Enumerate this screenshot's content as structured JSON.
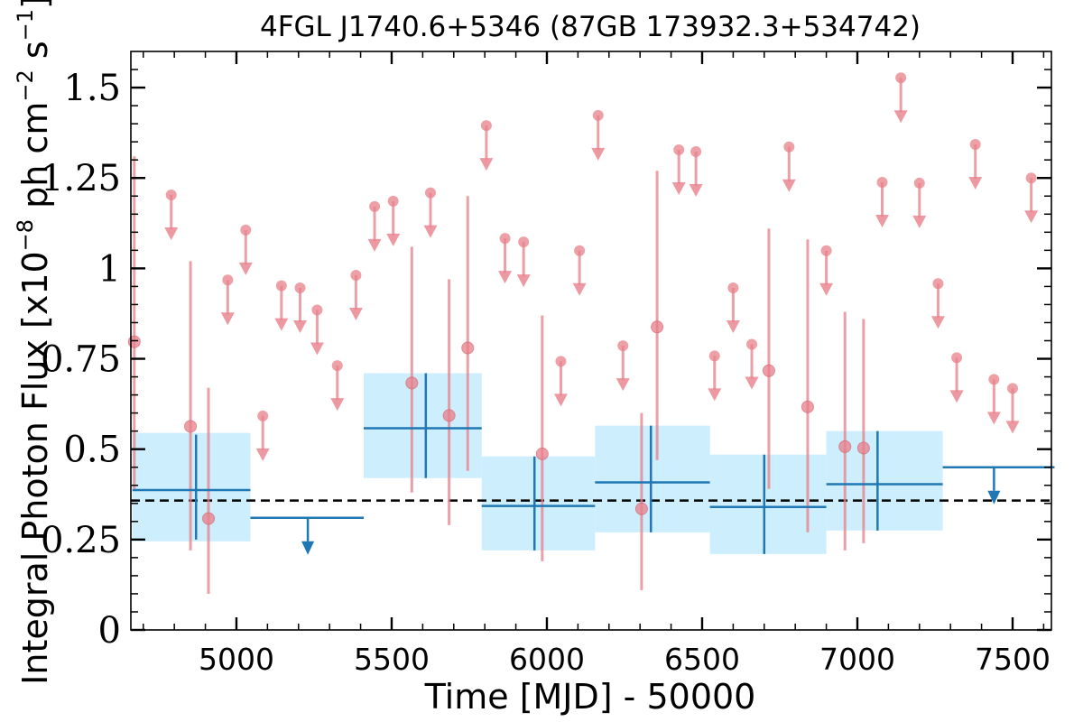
{
  "chart_data": {
    "type": "scatter",
    "title": "4FGL J1740.6+5346 (87GB 173932.3+534742)",
    "xlabel": "Time [MJD] - 50000",
    "ylabel_main": "Integral Photon Flux [x10",
    "ylabel_exp": "−8",
    "ylabel_mid": " ph cm",
    "ylabel_exp2": "−2",
    "ylabel_end": " s",
    "ylabel_exp3": "−1",
    "ylabel_close": "]",
    "xlim": [
      4660,
      7625
    ],
    "ylim": [
      0,
      1.6
    ],
    "xticks": [
      5000,
      5500,
      6000,
      6500,
      7000,
      7500
    ],
    "xtick_labels": [
      "5000",
      "5500",
      "6000",
      "6500",
      "7000",
      "7500"
    ],
    "yticks": [
      0,
      0.25,
      0.5,
      0.75,
      1,
      1.25,
      1.5
    ],
    "ytick_labels": [
      "0",
      "0.25",
      "0.5",
      "0.75",
      "1",
      "1.25",
      "1.5"
    ],
    "average_flux": 0.358,
    "colors": {
      "fine": "#e8808a",
      "coarse": "#1f77b4",
      "band": "#cdeefc",
      "average": "#000000"
    },
    "fine_detections": [
      {
        "x": 4671,
        "y": 0.797,
        "lo": 0.39,
        "hi": 1.31
      },
      {
        "x": 4852,
        "y": 0.563,
        "lo": 0.22,
        "hi": 1.02
      },
      {
        "x": 4910,
        "y": 0.308,
        "lo": 0.1,
        "hi": 0.67
      },
      {
        "x": 5565,
        "y": 0.683,
        "lo": 0.38,
        "hi": 1.06
      },
      {
        "x": 5685,
        "y": 0.593,
        "lo": 0.29,
        "hi": 0.97
      },
      {
        "x": 5745,
        "y": 0.78,
        "lo": 0.44,
        "hi": 1.2
      },
      {
        "x": 5985,
        "y": 0.487,
        "lo": 0.19,
        "hi": 0.87
      },
      {
        "x": 6305,
        "y": 0.335,
        "lo": 0.11,
        "hi": 0.6
      },
      {
        "x": 6355,
        "y": 0.838,
        "lo": 0.47,
        "hi": 1.27
      },
      {
        "x": 6715,
        "y": 0.717,
        "lo": 0.39,
        "hi": 1.11
      },
      {
        "x": 6840,
        "y": 0.617,
        "lo": 0.27,
        "hi": 1.08
      },
      {
        "x": 6960,
        "y": 0.507,
        "lo": 0.22,
        "hi": 0.88
      },
      {
        "x": 7020,
        "y": 0.503,
        "lo": 0.24,
        "hi": 0.86
      }
    ],
    "fine_upper_limits": [
      {
        "x": 4790,
        "y": 1.203
      },
      {
        "x": 4972,
        "y": 0.968
      },
      {
        "x": 5030,
        "y": 1.106
      },
      {
        "x": 5085,
        "y": 0.592
      },
      {
        "x": 5145,
        "y": 0.952
      },
      {
        "x": 5205,
        "y": 0.946
      },
      {
        "x": 5260,
        "y": 0.885
      },
      {
        "x": 5325,
        "y": 0.731
      },
      {
        "x": 5385,
        "y": 0.981
      },
      {
        "x": 5445,
        "y": 1.171
      },
      {
        "x": 5505,
        "y": 1.186
      },
      {
        "x": 5625,
        "y": 1.209
      },
      {
        "x": 5805,
        "y": 1.395
      },
      {
        "x": 5865,
        "y": 1.083
      },
      {
        "x": 5925,
        "y": 1.073
      },
      {
        "x": 6045,
        "y": 0.743
      },
      {
        "x": 6105,
        "y": 1.049
      },
      {
        "x": 6165,
        "y": 1.423
      },
      {
        "x": 6245,
        "y": 0.786
      },
      {
        "x": 6425,
        "y": 1.328
      },
      {
        "x": 6480,
        "y": 1.323
      },
      {
        "x": 6540,
        "y": 0.758
      },
      {
        "x": 6600,
        "y": 0.946
      },
      {
        "x": 6660,
        "y": 0.79
      },
      {
        "x": 6780,
        "y": 1.336
      },
      {
        "x": 6900,
        "y": 1.049
      },
      {
        "x": 7080,
        "y": 1.238
      },
      {
        "x": 7140,
        "y": 1.527
      },
      {
        "x": 7200,
        "y": 1.236
      },
      {
        "x": 7260,
        "y": 0.958
      },
      {
        "x": 7320,
        "y": 0.753
      },
      {
        "x": 7380,
        "y": 1.343
      },
      {
        "x": 7440,
        "y": 0.693
      },
      {
        "x": 7500,
        "y": 0.668
      },
      {
        "x": 7560,
        "y": 1.25
      }
    ],
    "coarse_bins": [
      {
        "x0": 4665,
        "x1": 5045,
        "xc": 4870,
        "y": 0.387,
        "lo": 0.25,
        "hi": 0.54,
        "band_lo": 0.245,
        "band_hi": 0.545,
        "ul": false
      },
      {
        "x0": 5045,
        "x1": 5410,
        "xc": 5230,
        "y": 0.31,
        "ul": true
      },
      {
        "x0": 5410,
        "x1": 5790,
        "xc": 5610,
        "y": 0.558,
        "lo": 0.42,
        "hi": 0.71,
        "band_lo": 0.42,
        "band_hi": 0.71,
        "ul": false
      },
      {
        "x0": 5790,
        "x1": 6155,
        "xc": 5960,
        "y": 0.343,
        "lo": 0.22,
        "hi": 0.48,
        "band_lo": 0.22,
        "band_hi": 0.48,
        "ul": false
      },
      {
        "x0": 6155,
        "x1": 6525,
        "xc": 6335,
        "y": 0.408,
        "lo": 0.27,
        "hi": 0.565,
        "band_lo": 0.27,
        "band_hi": 0.565,
        "ul": false
      },
      {
        "x0": 6525,
        "x1": 6900,
        "xc": 6700,
        "y": 0.34,
        "lo": 0.21,
        "hi": 0.485,
        "band_lo": 0.21,
        "band_hi": 0.485,
        "ul": false
      },
      {
        "x0": 6900,
        "x1": 7275,
        "xc": 7065,
        "y": 0.403,
        "lo": 0.275,
        "hi": 0.55,
        "band_lo": 0.275,
        "band_hi": 0.55,
        "ul": false
      },
      {
        "x0": 7275,
        "x1": 7635,
        "xc": 7440,
        "y": 0.45,
        "ul": true
      }
    ],
    "grid": false,
    "legend": "none"
  }
}
